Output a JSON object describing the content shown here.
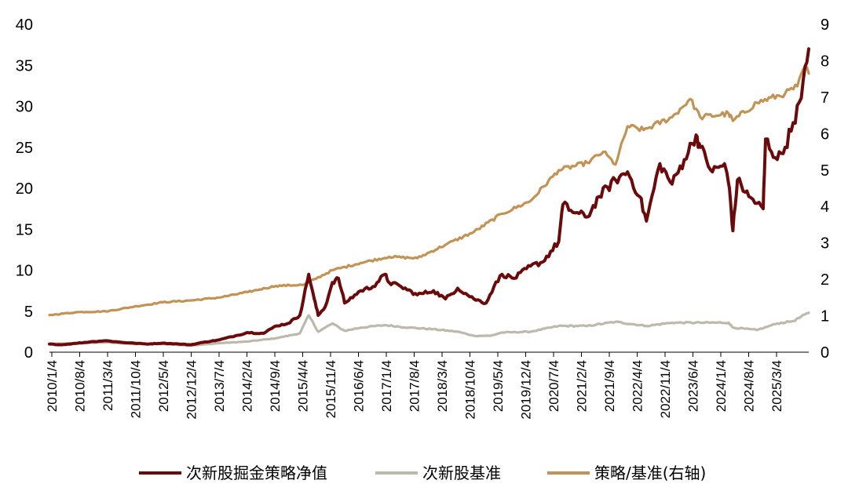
{
  "chart_data": {
    "type": "line",
    "title": "",
    "xlabel": "",
    "ylabel": "",
    "x_tick_labels": [
      "2010/1/4",
      "2010/8/4",
      "2011/3/4",
      "2011/10/4",
      "2012/5/4",
      "2012/12/4",
      "2013/7/4",
      "2014/2/4",
      "2014/9/4",
      "2015/4/4",
      "2015/11/4",
      "2016/6/4",
      "2017/1/4",
      "2017/8/4",
      "2018/3/4",
      "2018/10/4",
      "2019/5/4",
      "2019/12/4",
      "2020/7/4",
      "2021/2/4",
      "2021/9/4",
      "2022/4/4",
      "2022/11/4",
      "2023/6/4",
      "2024/1/4",
      "2024/8/4",
      "2025/3/4"
    ],
    "x_range": [
      "2010/1/4",
      "2025/8/29"
    ],
    "y_left": {
      "range": [
        0,
        40
      ],
      "ticks": [
        0,
        5,
        10,
        15,
        20,
        25,
        30,
        35,
        40
      ]
    },
    "y_right": {
      "range": [
        0,
        9
      ],
      "ticks": [
        0,
        1,
        2,
        3,
        4,
        5,
        6,
        7,
        8,
        9
      ]
    },
    "grid": false,
    "legend": {
      "placement": "bottom-center"
    },
    "series": [
      {
        "name": "次新股掘金策略净值",
        "axis": "left",
        "color": "#6B0A0A",
        "points": [
          [
            "2010/1/4",
            1.0
          ],
          [
            "2010/4/4",
            0.9
          ],
          [
            "2010/8/4",
            1.1
          ],
          [
            "2010/12/4",
            1.3
          ],
          [
            "2011/3/4",
            1.4
          ],
          [
            "2011/7/4",
            1.2
          ],
          [
            "2011/10/4",
            1.1
          ],
          [
            "2012/1/4",
            1.0
          ],
          [
            "2012/5/4",
            1.1
          ],
          [
            "2012/9/4",
            1.0
          ],
          [
            "2012/12/4",
            0.9
          ],
          [
            "2013/3/4",
            1.2
          ],
          [
            "2013/7/4",
            1.5
          ],
          [
            "2013/11/4",
            2.0
          ],
          [
            "2014/2/4",
            2.4
          ],
          [
            "2014/6/4",
            2.3
          ],
          [
            "2014/9/4",
            3.2
          ],
          [
            "2014/12/4",
            3.5
          ],
          [
            "2015/3/4",
            4.5
          ],
          [
            "2015/5/10",
            9.5
          ],
          [
            "2015/6/20",
            6.5
          ],
          [
            "2015/7/20",
            4.5
          ],
          [
            "2015/9/10",
            5.5
          ],
          [
            "2015/11/4",
            8.5
          ],
          [
            "2015/12/20",
            9.0
          ],
          [
            "2016/2/4",
            6.0
          ],
          [
            "2016/6/4",
            7.5
          ],
          [
            "2016/9/4",
            8.0
          ],
          [
            "2016/12/4",
            9.5
          ],
          [
            "2017/1/4",
            8.5
          ],
          [
            "2017/4/4",
            8.0
          ],
          [
            "2017/8/4",
            7.0
          ],
          [
            "2017/12/4",
            7.5
          ],
          [
            "2018/3/4",
            6.5
          ],
          [
            "2018/6/4",
            7.8
          ],
          [
            "2018/10/4",
            6.5
          ],
          [
            "2019/1/4",
            6.0
          ],
          [
            "2019/3/4",
            8.0
          ],
          [
            "2019/5/4",
            9.5
          ],
          [
            "2019/8/4",
            9.0
          ],
          [
            "2019/12/4",
            10.5
          ],
          [
            "2020/3/4",
            11.0
          ],
          [
            "2020/7/4",
            13.5
          ],
          [
            "2020/8/4",
            18.0
          ],
          [
            "2020/11/4",
            17.0
          ],
          [
            "2021/2/4",
            16.5
          ],
          [
            "2021/5/4",
            19.0
          ],
          [
            "2021/9/4",
            21.0
          ],
          [
            "2021/12/4",
            22.0
          ],
          [
            "2022/3/4",
            19.0
          ],
          [
            "2022/4/25",
            16.0
          ],
          [
            "2022/8/4",
            23.0
          ],
          [
            "2022/11/4",
            20.5
          ],
          [
            "2023/2/4",
            23.5
          ],
          [
            "2023/5/4",
            26.5
          ],
          [
            "2023/6/4",
            25.0
          ],
          [
            "2023/9/4",
            22.0
          ],
          [
            "2023/12/4",
            23.0
          ],
          [
            "2024/1/10",
            20.0
          ],
          [
            "2024/2/5",
            14.8
          ],
          [
            "2024/3/10",
            21.0
          ],
          [
            "2024/6/4",
            19.0
          ],
          [
            "2024/9/20",
            17.5
          ],
          [
            "2024/10/8",
            26.0
          ],
          [
            "2025/1/4",
            23.5
          ],
          [
            "2025/3/4",
            25.0
          ],
          [
            "2025/5/4",
            28.0
          ],
          [
            "2025/7/4",
            31.0
          ],
          [
            "2025/8/29",
            37.0
          ]
        ]
      },
      {
        "name": "次新股基准",
        "axis": "left",
        "color": "#BDB9AC",
        "points": [
          [
            "2010/1/4",
            1.0
          ],
          [
            "2010/8/4",
            1.1
          ],
          [
            "2011/3/4",
            1.2
          ],
          [
            "2011/10/4",
            1.0
          ],
          [
            "2012/5/4",
            1.0
          ],
          [
            "2012/12/4",
            0.8
          ],
          [
            "2013/7/4",
            1.1
          ],
          [
            "2014/2/4",
            1.3
          ],
          [
            "2014/9/4",
            1.7
          ],
          [
            "2015/3/4",
            2.3
          ],
          [
            "2015/5/10",
            4.5
          ],
          [
            "2015/7/20",
            2.5
          ],
          [
            "2015/11/4",
            3.5
          ],
          [
            "2016/2/4",
            2.6
          ],
          [
            "2016/6/4",
            3.0
          ],
          [
            "2016/12/4",
            3.3
          ],
          [
            "2017/6/4",
            3.0
          ],
          [
            "2017/12/4",
            2.8
          ],
          [
            "2018/6/4",
            2.5
          ],
          [
            "2018/10/4",
            2.0
          ],
          [
            "2019/2/4",
            2.0
          ],
          [
            "2019/5/4",
            2.4
          ],
          [
            "2019/12/4",
            2.5
          ],
          [
            "2020/7/4",
            3.2
          ],
          [
            "2021/2/4",
            3.2
          ],
          [
            "2021/9/4",
            3.7
          ],
          [
            "2022/4/25",
            3.2
          ],
          [
            "2022/11/4",
            3.6
          ],
          [
            "2023/6/4",
            3.6
          ],
          [
            "2024/1/4",
            3.6
          ],
          [
            "2024/2/5",
            3.0
          ],
          [
            "2024/8/4",
            2.7
          ],
          [
            "2025/1/4",
            3.5
          ],
          [
            "2025/5/4",
            3.8
          ],
          [
            "2025/8/29",
            4.8
          ]
        ]
      },
      {
        "name": "策略/基准(右轴)",
        "axis": "right",
        "color": "#C19355",
        "points": [
          [
            "2010/1/4",
            1.02
          ],
          [
            "2010/8/4",
            1.1
          ],
          [
            "2011/3/4",
            1.12
          ],
          [
            "2011/10/4",
            1.25
          ],
          [
            "2012/5/4",
            1.37
          ],
          [
            "2012/12/4",
            1.42
          ],
          [
            "2013/7/4",
            1.5
          ],
          [
            "2014/2/4",
            1.65
          ],
          [
            "2014/9/4",
            1.82
          ],
          [
            "2015/4/4",
            1.85
          ],
          [
            "2015/11/4",
            2.25
          ],
          [
            "2016/6/4",
            2.45
          ],
          [
            "2017/1/4",
            2.62
          ],
          [
            "2017/8/4",
            2.58
          ],
          [
            "2018/3/4",
            2.95
          ],
          [
            "2018/10/4",
            3.3
          ],
          [
            "2019/5/4",
            3.8
          ],
          [
            "2019/12/4",
            4.15
          ],
          [
            "2020/7/4",
            5.0
          ],
          [
            "2021/2/4",
            5.2
          ],
          [
            "2021/6/4",
            5.5
          ],
          [
            "2021/9/4",
            5.15
          ],
          [
            "2021/12/4",
            6.2
          ],
          [
            "2022/4/4",
            6.1
          ],
          [
            "2022/11/4",
            6.45
          ],
          [
            "2023/3/20",
            6.95
          ],
          [
            "2023/6/4",
            6.45
          ],
          [
            "2024/1/4",
            6.55
          ],
          [
            "2024/2/5",
            6.35
          ],
          [
            "2024/8/4",
            6.85
          ],
          [
            "2025/3/4",
            7.1
          ],
          [
            "2025/6/4",
            7.3
          ],
          [
            "2025/8/1",
            7.85
          ],
          [
            "2025/8/29",
            7.65
          ]
        ]
      }
    ]
  }
}
